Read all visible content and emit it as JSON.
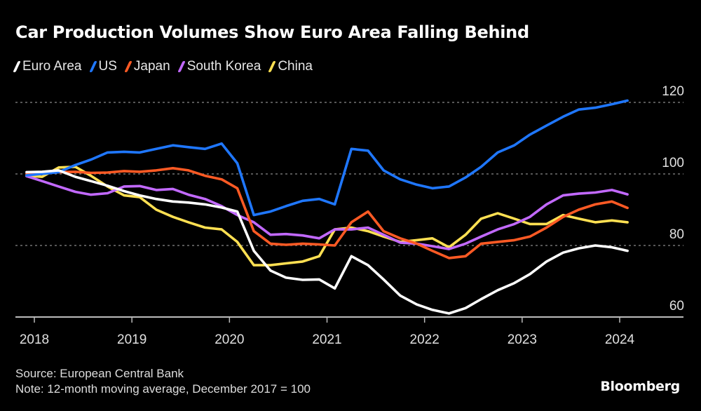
{
  "chart_data": {
    "type": "line",
    "title": "Car Production Volumes Show Euro Area Falling Behind",
    "xlabel": "",
    "ylabel": "",
    "xlim": [
      2017.92,
      2024.1
    ],
    "ylim": [
      60,
      120
    ],
    "y_ticks": [
      60,
      80,
      100,
      120
    ],
    "y_gridlines": [
      80,
      100,
      120
    ],
    "x_ticks": [
      "2018",
      "2019",
      "2020",
      "2021",
      "2022",
      "2023",
      "2024"
    ],
    "x_tick_values": [
      2018,
      2019,
      2020,
      2021,
      2022,
      2023,
      2024
    ],
    "y_axis_side": "right",
    "legend_position": "top-left",
    "x": [
      2017.92,
      2018.08,
      2018.25,
      2018.42,
      2018.58,
      2018.75,
      2018.92,
      2019.08,
      2019.25,
      2019.42,
      2019.58,
      2019.75,
      2019.92,
      2020.08,
      2020.25,
      2020.42,
      2020.58,
      2020.75,
      2020.92,
      2021.08,
      2021.25,
      2021.42,
      2021.58,
      2021.75,
      2021.92,
      2022.08,
      2022.25,
      2022.42,
      2022.58,
      2022.75,
      2022.92,
      2023.08,
      2023.25,
      2023.42,
      2023.58,
      2023.75,
      2023.92,
      2024.08
    ],
    "series": [
      {
        "name": "Euro Area",
        "color": "#ffffff",
        "values": [
          100.5,
          100.6,
          101.0,
          99.2,
          98.0,
          96.7,
          95.2,
          94.0,
          93.0,
          92.3,
          92.0,
          91.5,
          90.6,
          89.5,
          78.5,
          73.0,
          71.0,
          70.4,
          70.5,
          68.0,
          77.0,
          74.5,
          70.5,
          66.0,
          63.5,
          62.0,
          61.0,
          62.5,
          65.0,
          67.5,
          69.5,
          72.0,
          75.5,
          78.0,
          79.2,
          80.0,
          79.5,
          78.5
        ]
      },
      {
        "name": "US",
        "color": "#1f77ff",
        "values": [
          99.6,
          100.0,
          100.5,
          102.5,
          104.0,
          106.0,
          106.2,
          106.0,
          107.0,
          108.0,
          107.5,
          107.0,
          108.5,
          103.0,
          88.5,
          89.5,
          91.0,
          92.5,
          93.0,
          91.5,
          107.0,
          106.5,
          101.0,
          98.5,
          97.0,
          96.0,
          96.5,
          99.0,
          102.0,
          106.0,
          108.0,
          111.0,
          113.5,
          116.0,
          118.0,
          118.5,
          119.5,
          120.5
        ]
      },
      {
        "name": "Japan",
        "color": "#ff5a24",
        "values": [
          100.0,
          100.2,
          100.5,
          100.6,
          100.3,
          100.4,
          100.8,
          100.6,
          101.0,
          101.6,
          101.0,
          99.5,
          98.5,
          96.0,
          84.0,
          80.5,
          80.2,
          80.5,
          80.3,
          80.0,
          86.5,
          89.5,
          84.0,
          82.0,
          80.5,
          78.5,
          76.5,
          77.0,
          80.5,
          81.0,
          81.5,
          82.5,
          85.0,
          88.0,
          90.0,
          91.5,
          92.3,
          90.5
        ]
      },
      {
        "name": "South Korea",
        "color": "#c269ff",
        "values": [
          99.4,
          98.0,
          96.5,
          95.0,
          94.2,
          94.6,
          96.5,
          96.6,
          95.5,
          95.8,
          94.2,
          93.0,
          91.0,
          88.5,
          86.5,
          83.0,
          83.2,
          82.8,
          82.0,
          84.5,
          84.5,
          85.0,
          83.0,
          80.8,
          80.5,
          79.8,
          79.0,
          80.5,
          82.5,
          84.5,
          86.0,
          88.0,
          91.5,
          94.0,
          94.5,
          94.8,
          95.5,
          94.3
        ]
      },
      {
        "name": "China",
        "color": "#ffe052",
        "values": [
          99.5,
          99.2,
          101.8,
          102.0,
          99.5,
          96.5,
          94.0,
          93.5,
          90.0,
          88.0,
          86.5,
          85.0,
          84.5,
          81.0,
          74.5,
          74.5,
          75.0,
          75.5,
          77.0,
          84.5,
          85.0,
          84.0,
          82.5,
          81.0,
          81.5,
          82.0,
          79.5,
          83.0,
          87.5,
          89.0,
          87.5,
          86.0,
          86.0,
          88.5,
          87.5,
          86.5,
          87.0,
          86.5
        ]
      }
    ]
  },
  "title": "Car Production Volumes Show Euro Area Falling Behind",
  "legend": [
    {
      "label": "Euro Area",
      "color": "#ffffff"
    },
    {
      "label": "US",
      "color": "#1f77ff"
    },
    {
      "label": "Japan",
      "color": "#ff5a24"
    },
    {
      "label": "South Korea",
      "color": "#c269ff"
    },
    {
      "label": "China",
      "color": "#ffe052"
    }
  ],
  "footer": {
    "source": "Source: European Central Bank",
    "note": "Note: 12-month moving average, December 2017 = 100"
  },
  "brand": "Bloomberg"
}
